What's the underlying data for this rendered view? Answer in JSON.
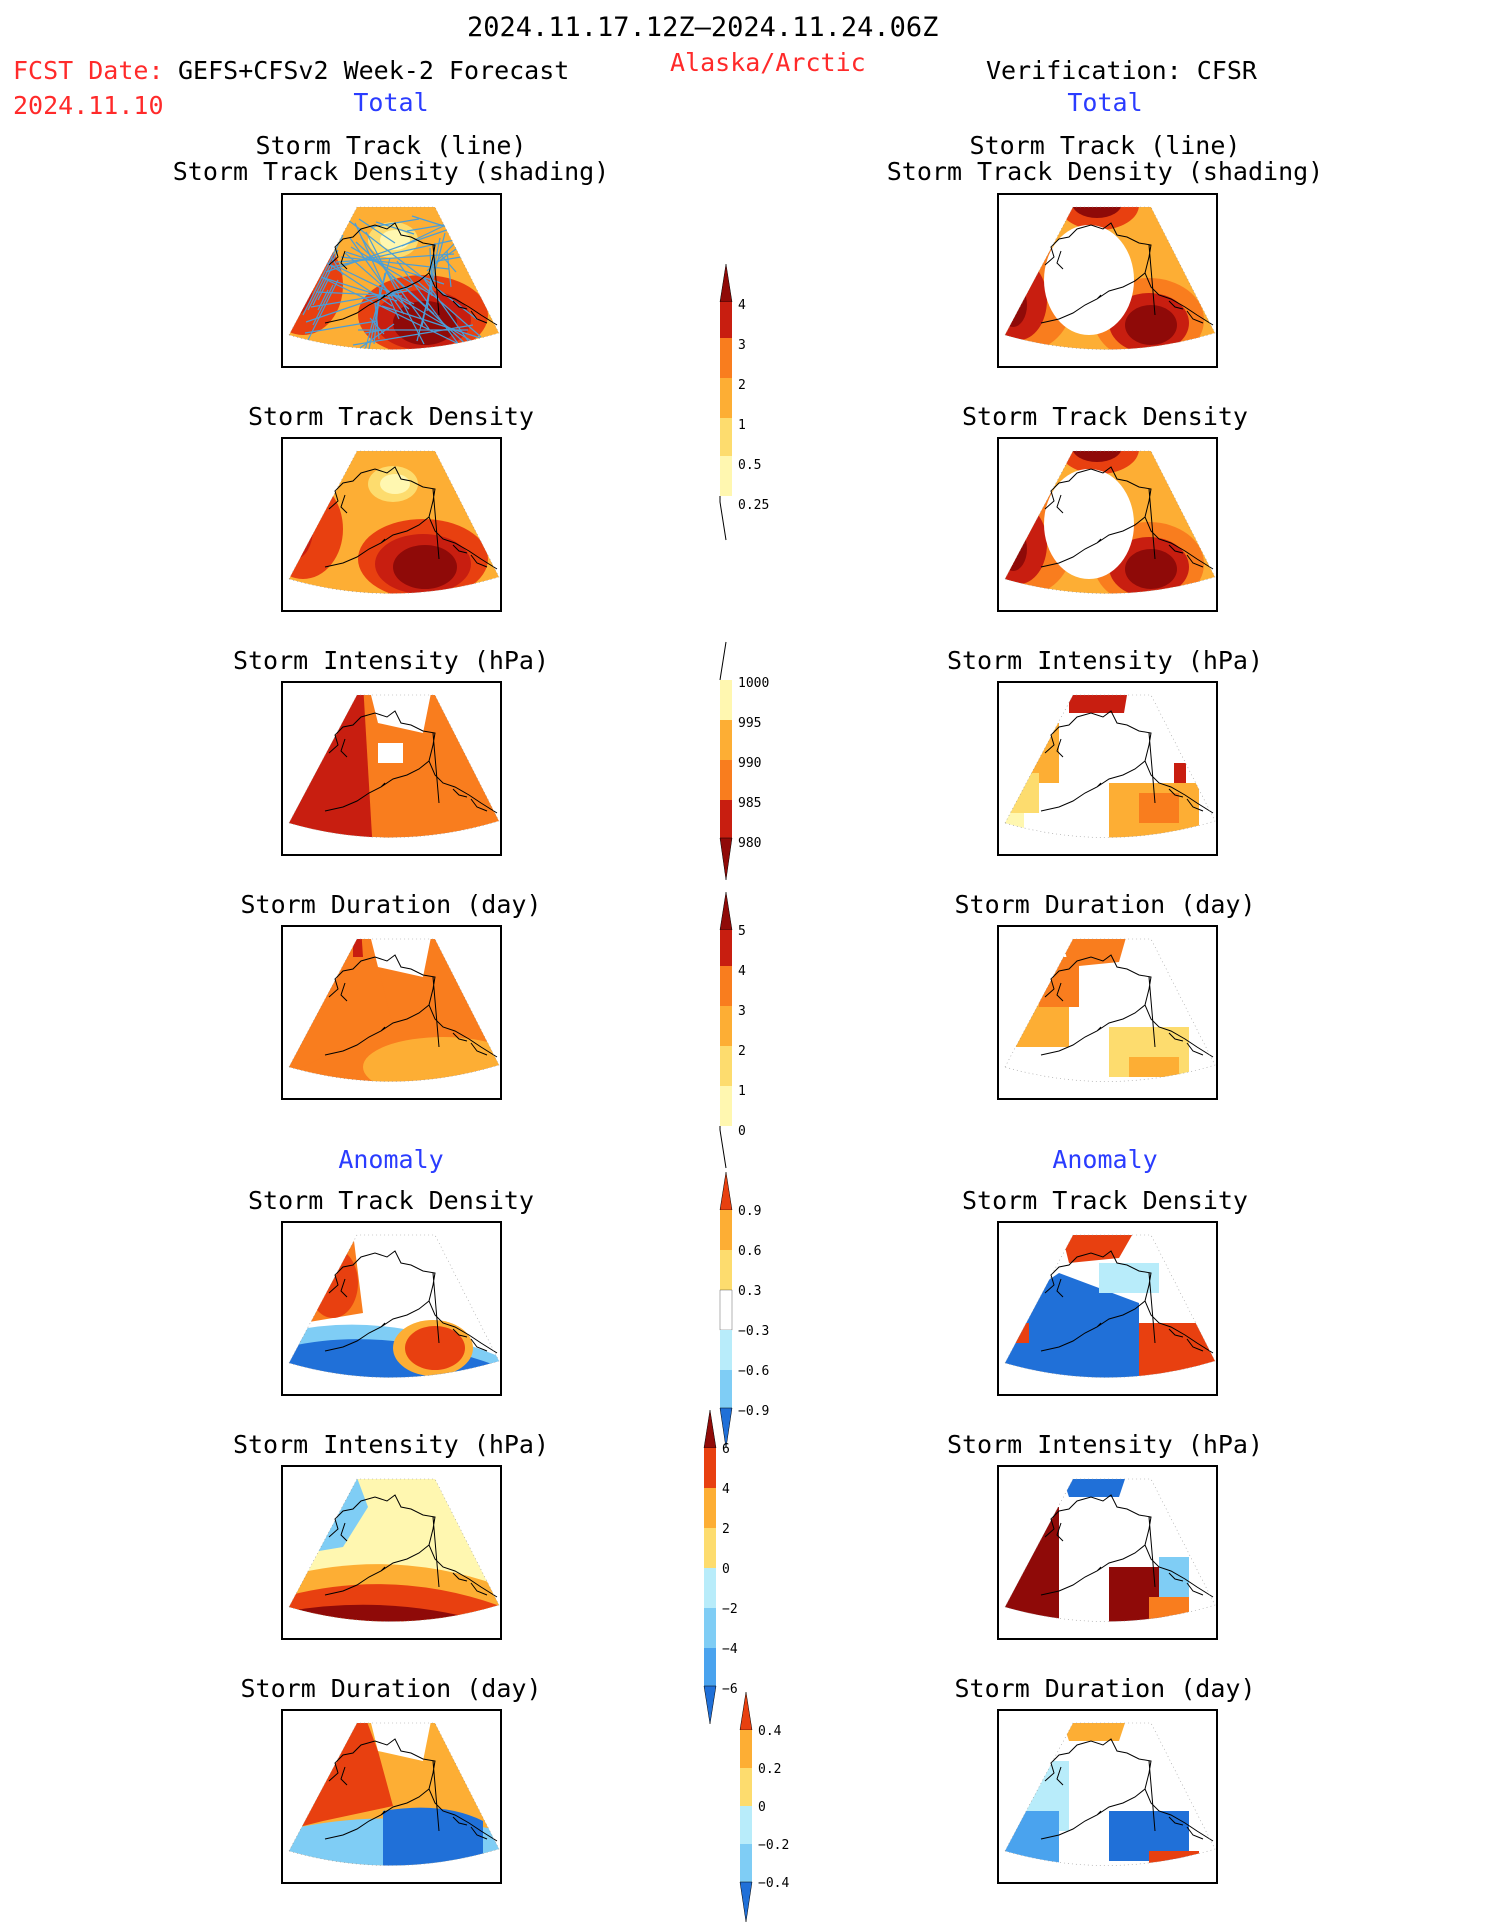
{
  "header": {
    "period": "2024.11.17.12Z—2024.11.24.06Z",
    "region": "Alaska/Arctic",
    "fcst_label": "FCST Date:",
    "fcst_model": "GEFS+CFSv2 Week-2 Forecast",
    "fcst_date": "2024.11.10",
    "verification": "Verification: CFSR"
  },
  "sections": {
    "total": "Total",
    "anomaly": "Anomaly"
  },
  "panel_titles": {
    "track_line": "Storm Track (line)",
    "track_shading": "Storm Track Density (shading)",
    "density": "Storm Track Density",
    "intensity": "Storm Intensity (hPa)",
    "duration": "Storm Duration (day)"
  },
  "colorbars": {
    "density_total": [
      "4",
      "3",
      "2",
      "1",
      "0.5",
      "0.25"
    ],
    "intensity_total": [
      "1000",
      "995",
      "990",
      "985",
      "980"
    ],
    "duration_total": [
      "5",
      "4",
      "3",
      "2",
      "1",
      "0"
    ],
    "density_anom": [
      "0.9",
      "0.6",
      "0.3",
      "−0.3",
      "−0.6",
      "−0.9"
    ],
    "intensity_anom": [
      "6",
      "4",
      "2",
      "0",
      "−2",
      "−4",
      "−6"
    ],
    "duration_anom": [
      "0.4",
      "0.2",
      "0",
      "−0.2",
      "−0.4"
    ]
  },
  "colors": {
    "warm": [
      "#fff7b0",
      "#fddc6e",
      "#fdae34",
      "#f97d1e",
      "#e84010",
      "#c81e10",
      "#8f0a08"
    ],
    "cool": [
      "#b8ecfa",
      "#7fcdf5",
      "#4aa3ee",
      "#2070d8"
    ],
    "track_line": "#4a9ed8"
  }
}
